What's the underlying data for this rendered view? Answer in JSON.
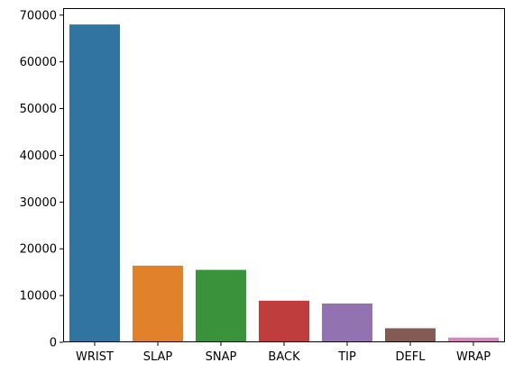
{
  "chart_data": {
    "type": "bar",
    "categories": [
      "WRIST",
      "SLAP",
      "SNAP",
      "BACK",
      "TIP",
      "DEFL",
      "WRAP"
    ],
    "values": [
      68000,
      16400,
      15500,
      8900,
      8300,
      3000,
      1000
    ],
    "colors": [
      "#3274a1",
      "#e1812c",
      "#3a923a",
      "#c03d3e",
      "#9372b2",
      "#845b53",
      "#d684bd"
    ],
    "ylim": [
      0,
      71500
    ],
    "yticks": [
      0,
      10000,
      20000,
      30000,
      40000,
      50000,
      60000,
      70000
    ],
    "ytick_labels": [
      "0",
      "10000",
      "20000",
      "30000",
      "40000",
      "50000",
      "60000",
      "70000"
    ],
    "grid": false,
    "legend": false
  }
}
